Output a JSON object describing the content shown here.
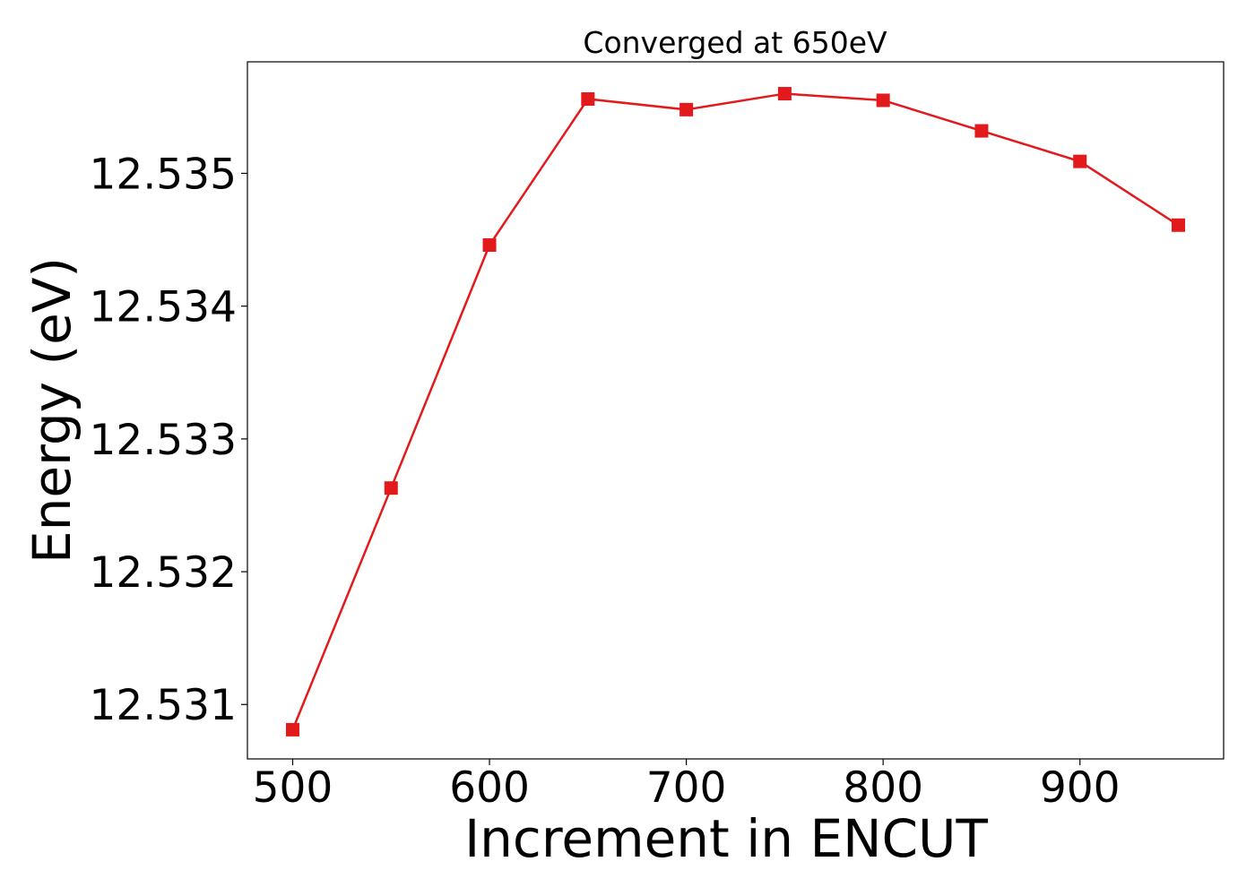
{
  "chart_data": {
    "type": "line",
    "title": "Converged at 650eV",
    "xlabel": "Increment in ENCUT",
    "ylabel": "Energy (eV)",
    "x": [
      500,
      550,
      600,
      650,
      700,
      750,
      800,
      850,
      900,
      950
    ],
    "series": [
      {
        "values": [
          12.53081,
          12.53263,
          12.53446,
          12.53556,
          12.53548,
          12.5356,
          12.53555,
          12.53532,
          12.53509,
          12.53461
        ],
        "color": "#e31a1c",
        "marker": "square"
      }
    ],
    "xlim": [
      477,
      973
    ],
    "ylim": [
      12.53059,
      12.53584
    ],
    "xticks": [
      500,
      600,
      700,
      800,
      900
    ],
    "xtick_labels": [
      "500",
      "600",
      "700",
      "800",
      "900"
    ],
    "yticks": [
      12.531,
      12.532,
      12.533,
      12.534,
      12.535
    ],
    "ytick_labels": [
      "12.531",
      "12.532",
      "12.533",
      "12.534",
      "12.535"
    ],
    "grid": false,
    "legend": "none"
  }
}
